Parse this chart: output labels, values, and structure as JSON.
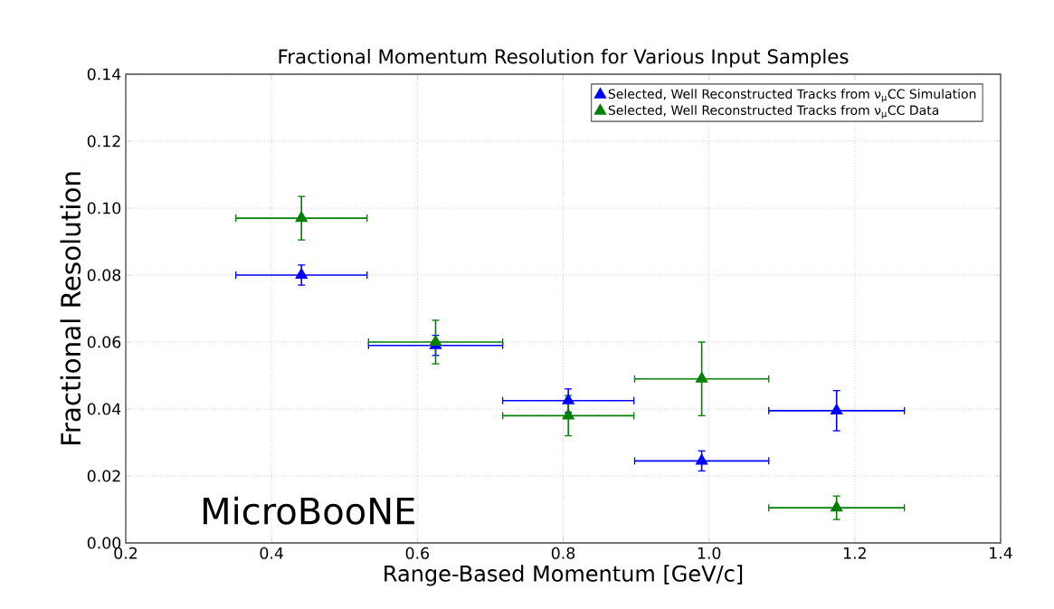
{
  "chart_data": {
    "type": "scatter",
    "title": "Fractional Momentum Resolution for Various Input Samples",
    "xlabel": "Range-Based Momentum [GeV/c]",
    "ylabel": "Fractional Resolution",
    "xlim": [
      0.2,
      1.4
    ],
    "xticks": [
      0.2,
      0.4,
      0.6,
      0.8,
      {
        "value": 1,
        "label": "1.0"
      },
      1.2,
      1.4
    ],
    "ylim": [
      0,
      0.14
    ],
    "yticks": [
      {
        "value": 0,
        "label": "0.00"
      },
      0.02,
      0.04,
      0.06,
      0.08,
      {
        "value": 0.1,
        "label": "0.10"
      },
      0.12,
      0.14
    ],
    "grid": true,
    "legend": "top right",
    "marker": "triangle",
    "annotations": [
      "MicroBooNE"
    ],
    "series": [
      {
        "name": "Selected, Well Reconstructed Tracks from ν$_{μ}$CC Simulation",
        "color": "#0000ff",
        "x": [
          0.441,
          0.625,
          0.807,
          0.99,
          1.175
        ],
        "values": [
          0.08,
          0.059,
          0.0425,
          0.0245,
          0.0395
        ],
        "errors": [
          0.003,
          0.003,
          0.0035,
          0.003,
          0.006
        ],
        "xerrors": [
          0.09,
          0.092,
          0.09,
          0.092,
          0.093
        ]
      },
      {
        "name": "Selected, Well Reconstructed Tracks from ν$_{μ}$CC Data",
        "color": "#008000",
        "x": [
          0.441,
          0.625,
          0.807,
          0.99,
          1.175
        ],
        "values": [
          0.097,
          0.06,
          0.038,
          0.049,
          0.0105
        ],
        "errors": [
          0.0065,
          0.0065,
          0.006,
          0.011,
          0.0035
        ],
        "xerrors": [
          0.09,
          0.092,
          0.09,
          0.092,
          0.093
        ]
      }
    ]
  }
}
